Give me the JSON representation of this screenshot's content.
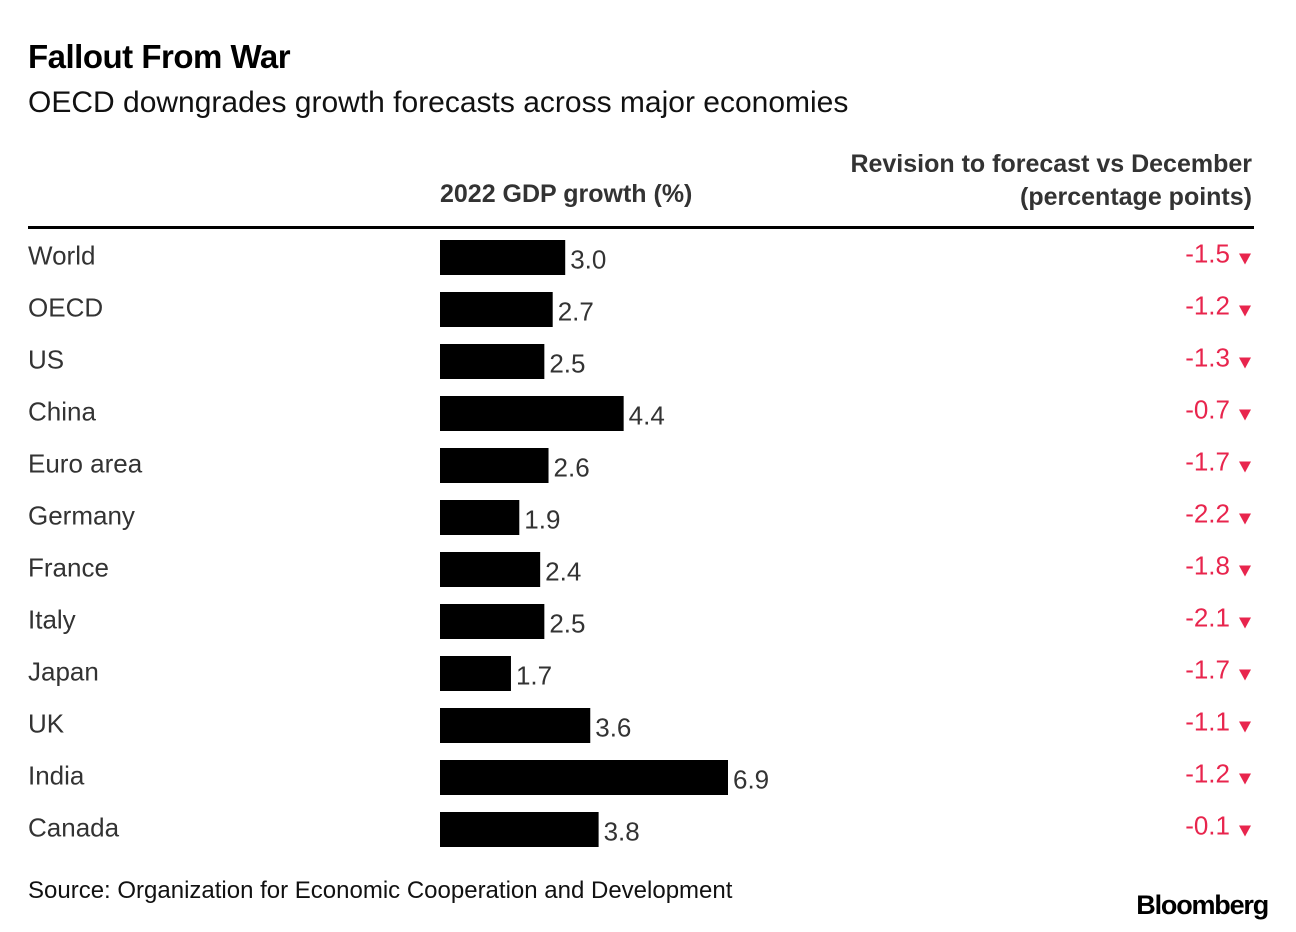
{
  "title": "Fallout From War",
  "subtitle": "OECD downgrades growth forecasts across major economies",
  "source": "Source: Organization for Economic Cooperation and Development",
  "brand": "Bloomberg",
  "colors": {
    "bar": "#000000",
    "revision": "#e8254d",
    "label": "#333333"
  },
  "chart_data": {
    "type": "bar",
    "orientation": "horizontal",
    "columns": {
      "growth": "2022 GDP growth (%)",
      "revision_line1": "Revision to forecast vs December",
      "revision_line2": "(percentage points)"
    },
    "categories": [
      "World",
      "OECD",
      "US",
      "China",
      "Euro area",
      "Germany",
      "France",
      "Italy",
      "Japan",
      "UK",
      "India",
      "Canada"
    ],
    "series": [
      {
        "values": [
          3.0,
          2.7,
          2.5,
          4.4,
          2.6,
          1.9,
          2.4,
          2.5,
          1.7,
          3.6,
          6.9,
          3.8
        ]
      }
    ],
    "value_labels": [
      "3.0",
      "2.7",
      "2.5",
      "4.4",
      "2.6",
      "1.9",
      "2.4",
      "2.5",
      "1.7",
      "3.6",
      "6.9",
      "3.8"
    ],
    "revisions": [
      -1.5,
      -1.2,
      -1.3,
      -0.7,
      -1.7,
      -2.2,
      -1.8,
      -2.1,
      -1.7,
      -1.1,
      -1.2,
      -0.1
    ],
    "revision_labels": [
      "-1.5",
      "-1.2",
      "-1.3",
      "-0.7",
      "-1.7",
      "-2.2",
      "-1.8",
      "-2.1",
      "-1.7",
      "-1.1",
      "-1.2",
      "-0.1"
    ],
    "revision_marker": "down-triangle-icon",
    "xlim": [
      0,
      6.9
    ],
    "grid": false,
    "legend": "none"
  }
}
